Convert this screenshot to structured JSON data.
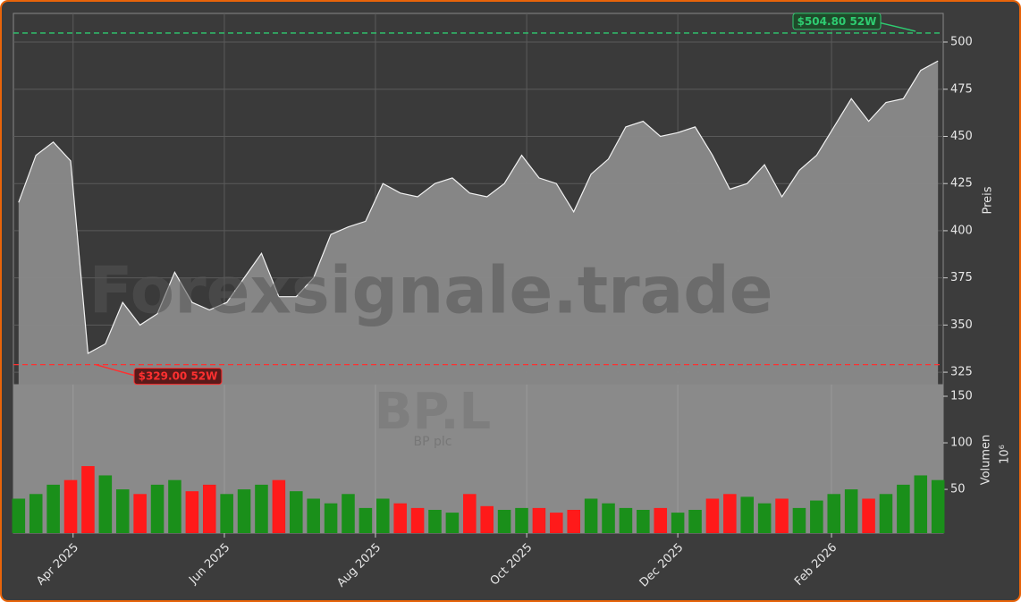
{
  "chart_data": {
    "type": "stock",
    "watermark": "Forexsignale.trade",
    "ticker": "BP.L",
    "company": "BP plc",
    "price_label": "Preis",
    "volume_label": "Volumen",
    "volume_unit": "10⁶",
    "categories": [
      null,
      null,
      null,
      null,
      null,
      null,
      null,
      null,
      null,
      null,
      null,
      null,
      null,
      null,
      null,
      null,
      null,
      null,
      null,
      null,
      null,
      null,
      null,
      null,
      null,
      null,
      null,
      null,
      null,
      null,
      null,
      null,
      null,
      null,
      null,
      null,
      null,
      null,
      null,
      null,
      null,
      null,
      null,
      null,
      null,
      null,
      null,
      null,
      null,
      null,
      null,
      null,
      null,
      null
    ],
    "close": [
      415,
      440,
      447,
      437,
      335,
      340,
      362,
      350,
      356,
      378,
      362,
      358,
      362,
      375,
      388,
      365,
      365,
      375,
      398,
      402,
      405,
      425,
      420,
      418,
      425,
      428,
      420,
      418,
      425,
      440,
      428,
      425,
      410,
      430,
      438,
      455,
      458,
      450,
      452,
      455,
      440,
      422,
      425,
      435,
      418,
      432,
      440,
      455,
      470,
      458,
      468,
      470,
      485,
      490
    ],
    "volume": [
      40,
      45,
      55,
      60,
      75,
      65,
      50,
      45,
      55,
      60,
      48,
      55,
      45,
      50,
      55,
      60,
      48,
      40,
      35,
      45,
      30,
      40,
      35,
      30,
      28,
      25,
      45,
      32,
      28,
      30,
      30,
      25,
      28,
      40,
      35,
      30,
      28,
      30,
      25,
      28,
      40,
      45,
      42,
      35,
      40,
      30,
      38,
      45,
      50,
      40,
      45,
      55,
      65,
      60
    ],
    "up_color": "#1a8f1a",
    "down_color": "#ff1a1a",
    "xlim": [
      -0.3,
      53.3
    ],
    "xticks": [
      {
        "value": 3.14,
        "label": "Apr 2025"
      },
      {
        "value": 11.86,
        "label": "Jun 2025"
      },
      {
        "value": 20.57,
        "label": "Aug 2025"
      },
      {
        "value": 29.29,
        "label": "Oct 2025"
      },
      {
        "value": 38.0,
        "label": "Dec 2025"
      },
      {
        "value": 46.86,
        "label": "Feb 2026"
      }
    ],
    "ylim": [
      318.4,
      515.2
    ],
    "yticks": [
      325,
      350,
      375,
      400,
      425,
      450,
      475,
      500
    ],
    "y2lim": [
      3,
      162.5
    ],
    "y2ticks": [
      50,
      100,
      150
    ],
    "grid": true,
    "annotations": [
      {
        "value": 504.8,
        "label": "$504.80 52W",
        "color": "#2ecc71"
      },
      {
        "value": 329.0,
        "label": "$329.00 52W",
        "color": "#ff3030"
      }
    ]
  }
}
